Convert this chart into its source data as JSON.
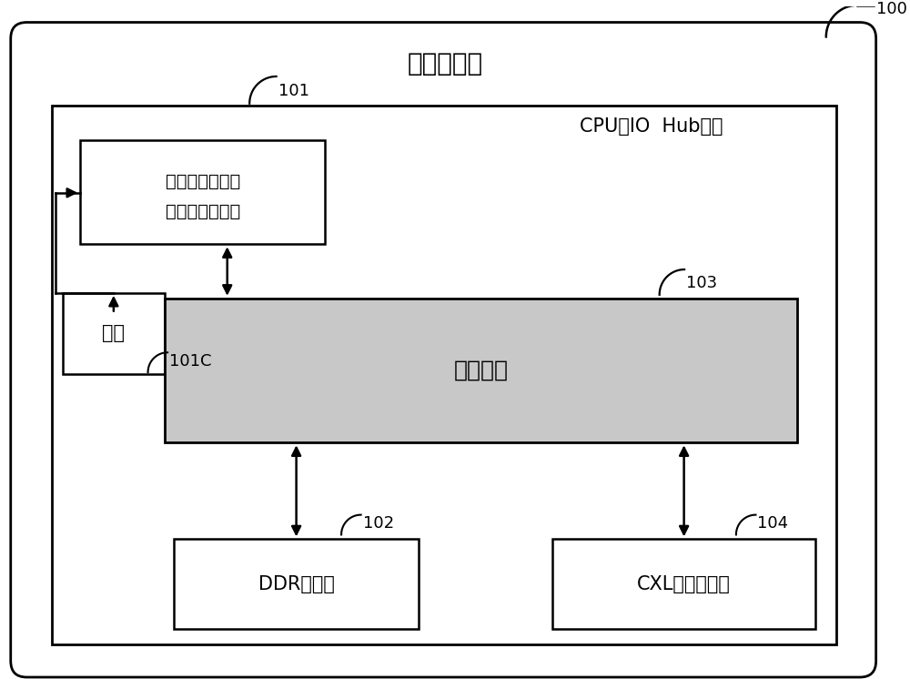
{
  "title": "多功能芯片",
  "outer_label": "100",
  "inner_label": "101",
  "cpu_hub_label": "CPU的IO  Hub芯片",
  "cache_ctrl_line1": "一致性缓存控制",
  "cache_ctrl_line2": "逻辑与缓存单元",
  "cache_label": "缓存",
  "cache_id": "101C",
  "bus_label": "互联总线",
  "bus_id": "103",
  "ddr_label": "DDR控制器",
  "ddr_id": "102",
  "cxl_label": "CXL设备控制器",
  "cxl_id": "104",
  "bg_color": "#ffffff",
  "box_edge": "#000000",
  "bus_fill": "#c8c8c8",
  "font_size_title": 20,
  "font_size_label": 15,
  "font_size_hub": 15,
  "font_size_bus": 18,
  "font_size_id": 13
}
